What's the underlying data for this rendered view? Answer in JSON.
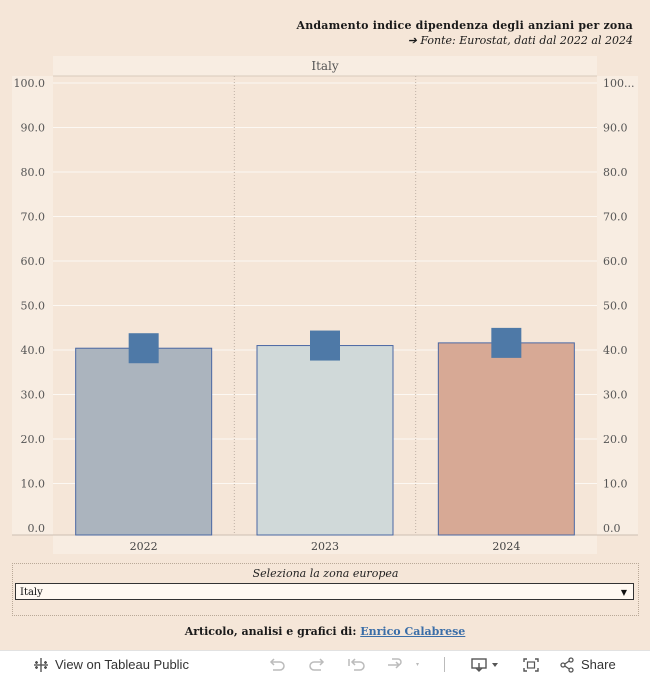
{
  "title": "Andamento indice dipendenza degli anziani per zona",
  "subtitle": "➔ Fonte:  Eurostat, dati dal 2022 al 2024",
  "chart_data": {
    "type": "bar",
    "panel": "Italy",
    "categories": [
      "2022",
      "2023",
      "2024"
    ],
    "values": [
      40.4,
      41.0,
      41.6
    ],
    "marker_values": [
      40.4,
      41.0,
      41.6
    ],
    "y_ticks": [
      "0.0",
      "10.0",
      "20.0",
      "30.0",
      "40.0",
      "50.0",
      "60.0",
      "70.0",
      "80.0",
      "90.0",
      "100.0"
    ],
    "y_ticks_right": [
      "0.0",
      "10.0",
      "20.0",
      "30.0",
      "40.0",
      "50.0",
      "60.0",
      "70.0",
      "80.0",
      "90.0",
      "100..."
    ],
    "ylim": [
      0,
      100
    ],
    "colors": [
      "#abb4be",
      "#d0d9d9",
      "#d7a995"
    ],
    "bar_stroke": "#4a67a3",
    "marker_color": "#4e79a7",
    "grid": true
  },
  "filter": {
    "label": "Seleziona la zona europea",
    "selected": "Italy"
  },
  "credit": {
    "prefix": "Articolo, analisi e grafici di:",
    "author": "Enrico Calabrese"
  },
  "toolbar": {
    "view_label": "View on Tableau Public",
    "share_label": "Share"
  }
}
